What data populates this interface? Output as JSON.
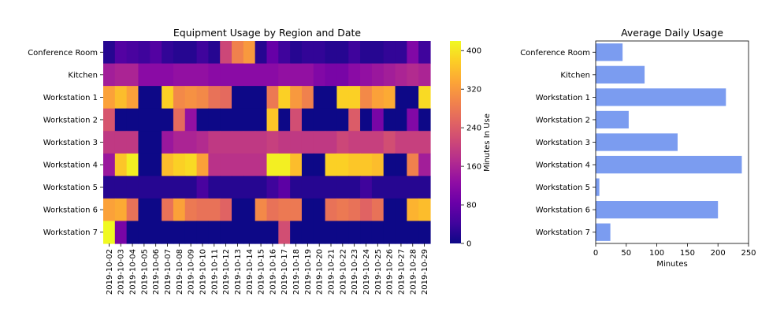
{
  "chart_data": [
    {
      "type": "heatmap",
      "title": "Equipment Usage by Region and Date",
      "rows": [
        "Conference Room",
        "Kitchen",
        "Workstation 1",
        "Workstation 2",
        "Workstation 3",
        "Workstation 4",
        "Workstation 5",
        "Workstation 6",
        "Workstation 7"
      ],
      "columns": [
        "2019-10-02",
        "2019-10-03",
        "2019-10-04",
        "2019-10-05",
        "2019-10-06",
        "2019-10-07",
        "2019-10-08",
        "2019-10-09",
        "2019-10-10",
        "2019-10-11",
        "2019-10-12",
        "2019-10-13",
        "2019-10-14",
        "2019-10-15",
        "2019-10-16",
        "2019-10-17",
        "2019-10-18",
        "2019-10-19",
        "2019-10-20",
        "2019-10-21",
        "2019-10-22",
        "2019-10-23",
        "2019-10-24",
        "2019-10-25",
        "2019-10-26",
        "2019-10-27",
        "2019-10-28",
        "2019-10-29"
      ],
      "values": [
        [
          20,
          60,
          50,
          40,
          60,
          30,
          20,
          20,
          40,
          20,
          210,
          290,
          320,
          20,
          80,
          40,
          20,
          30,
          30,
          20,
          20,
          40,
          20,
          20,
          30,
          30,
          110,
          40
        ],
        [
          150,
          160,
          160,
          120,
          120,
          120,
          130,
          130,
          130,
          120,
          120,
          120,
          120,
          120,
          120,
          130,
          130,
          130,
          110,
          100,
          100,
          120,
          130,
          140,
          150,
          160,
          170,
          160
        ],
        [
          330,
          360,
          330,
          0,
          0,
          380,
          300,
          310,
          300,
          270,
          260,
          0,
          0,
          0,
          280,
          380,
          320,
          290,
          0,
          0,
          380,
          380,
          300,
          330,
          340,
          0,
          0,
          390
        ],
        [
          230,
          0,
          0,
          0,
          0,
          0,
          260,
          130,
          0,
          0,
          0,
          0,
          0,
          0,
          370,
          0,
          220,
          0,
          0,
          0,
          0,
          240,
          0,
          100,
          0,
          0,
          110,
          0
        ],
        [
          190,
          190,
          190,
          0,
          0,
          140,
          160,
          160,
          170,
          190,
          190,
          190,
          190,
          190,
          200,
          190,
          190,
          190,
          190,
          190,
          210,
          200,
          200,
          200,
          220,
          200,
          200,
          200
        ],
        [
          140,
          370,
          410,
          0,
          0,
          360,
          380,
          390,
          330,
          180,
          180,
          180,
          180,
          180,
          410,
          410,
          360,
          0,
          0,
          380,
          380,
          370,
          370,
          360,
          0,
          0,
          290,
          150
        ],
        [
          20,
          20,
          20,
          20,
          20,
          20,
          20,
          20,
          50,
          20,
          20,
          20,
          20,
          20,
          40,
          70,
          20,
          20,
          20,
          20,
          20,
          20,
          40,
          20,
          20,
          20,
          20,
          20
        ],
        [
          330,
          340,
          270,
          0,
          0,
          270,
          330,
          280,
          270,
          270,
          250,
          0,
          0,
          300,
          270,
          280,
          280,
          0,
          0,
          270,
          280,
          270,
          250,
          270,
          0,
          0,
          350,
          360
        ],
        [
          420,
          100,
          0,
          0,
          0,
          0,
          0,
          0,
          0,
          0,
          0,
          0,
          0,
          0,
          0,
          220,
          0,
          0,
          0,
          0,
          0,
          0,
          0,
          0,
          0,
          0,
          0,
          0
        ]
      ],
      "colorbar": {
        "label": "Minutes In Use",
        "ticks": [
          0,
          80,
          160,
          240,
          320,
          400
        ],
        "range": [
          0,
          420
        ],
        "colormap": "plasma"
      }
    },
    {
      "type": "bar",
      "orientation": "horizontal",
      "title": "Average Daily Usage",
      "categories": [
        "Conference Room",
        "Kitchen",
        "Workstation 1",
        "Workstation 2",
        "Workstation 3",
        "Workstation 4",
        "Workstation 5",
        "Workstation 6",
        "Workstation 7"
      ],
      "values": [
        44,
        80,
        213,
        54,
        134,
        239,
        6,
        200,
        24
      ],
      "xlabel": "Minutes",
      "xlim": [
        0,
        250
      ],
      "xticks": [
        0,
        50,
        100,
        150,
        200,
        250
      ],
      "bar_color": "#7b9cf0"
    }
  ]
}
